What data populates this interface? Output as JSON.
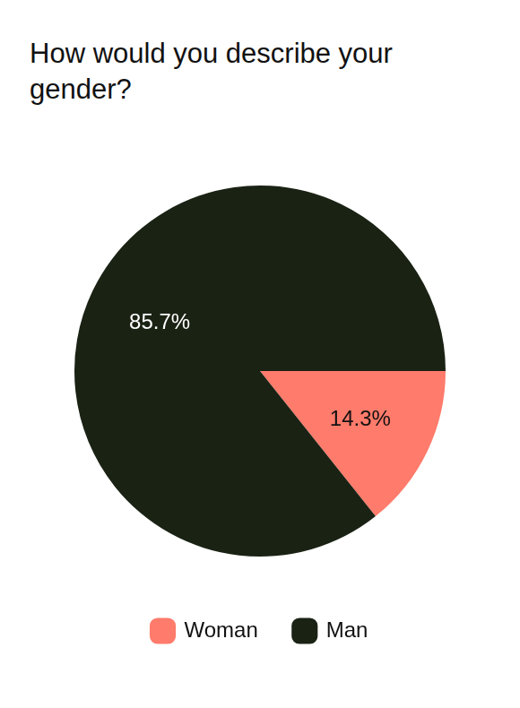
{
  "chart_data": {
    "type": "pie",
    "title": "How would you describe your gender?",
    "categories": [
      "Woman",
      "Man"
    ],
    "values": [
      14.3,
      85.7
    ],
    "value_labels": [
      "14.3%",
      "85.7%"
    ],
    "colors": [
      "#ff7b6b",
      "#1a2214"
    ],
    "data_labels": true,
    "legend": "bottom"
  }
}
